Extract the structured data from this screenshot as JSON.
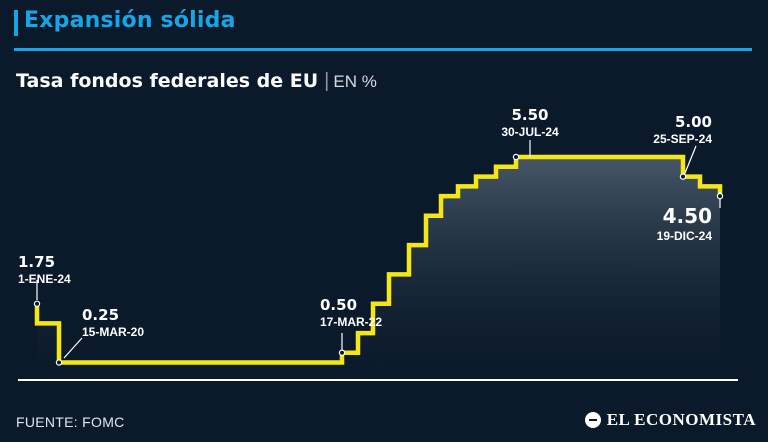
{
  "header": {
    "section_title": "Expansión sólida"
  },
  "chart_title": {
    "main": "Tasa fondos federales de EU",
    "separator": "|",
    "unit": "EN %"
  },
  "footer": {
    "source": "FUENTE: FOMC",
    "brand": "EL ECONOMISTA",
    "brand_icon": "economista-logo-icon"
  },
  "colors": {
    "accent": "#16a6e8",
    "line": "#f5e714",
    "background": "#0b1a2a"
  },
  "chart_data": {
    "type": "area",
    "line_shape": "step",
    "y_unit": "%",
    "ylim": [
      0,
      6.2
    ],
    "series": [
      {
        "values": [
          1.75,
          1.25,
          0.25,
          0.25,
          0.5,
          1.0,
          1.75,
          2.5,
          3.25,
          4.0,
          4.5,
          4.75,
          5.0,
          5.25,
          5.5,
          5.5,
          5.0,
          4.75,
          4.5
        ]
      }
    ],
    "annotations": [
      {
        "index": 0,
        "value": "1.75",
        "date": "1-ENE-24"
      },
      {
        "index": 2,
        "value": "0.25",
        "date": "15-MAR-20"
      },
      {
        "index": 4,
        "value": "0.50",
        "date": "17-MAR-22"
      },
      {
        "index": 14,
        "value": "5.50",
        "date": "30-JUL-24"
      },
      {
        "index": 16,
        "value": "5.00",
        "date": "25-SEP-24"
      },
      {
        "index": 18,
        "value": "4.50",
        "date": "19-DIC-24"
      }
    ]
  }
}
